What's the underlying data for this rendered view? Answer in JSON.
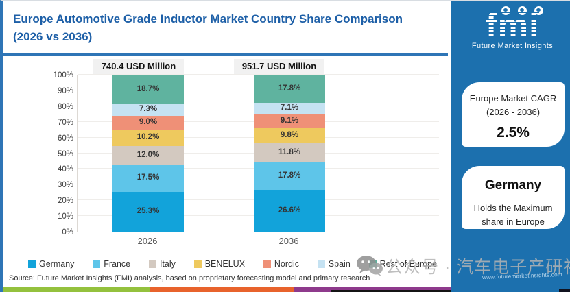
{
  "header": {
    "title": "Europe Automotive Grade Inductor Market Country Share Comparison (2026 vs 2036)"
  },
  "logo": {
    "name": "fmi",
    "tagline": "Future Market Insights",
    "website": "www.futuremarketinsights.com"
  },
  "sidebar": {
    "cagr_card": {
      "title_line1": "Europe Market CAGR",
      "title_line2": "(2026 - 2036)",
      "value": "2.5%"
    },
    "leader_card": {
      "country": "Germany",
      "desc_line1": "Holds the Maximum",
      "desc_line2": "share in Europe"
    }
  },
  "chart_data": {
    "type": "bar",
    "subtype": "100-percent-stacked-column",
    "title": "Europe Automotive Grade Inductor Market Country Share Comparison (2026 vs 2036)",
    "categories": [
      "2026",
      "2036"
    ],
    "bar_totals": [
      "740.4 USD Million",
      "951.7 USD Million"
    ],
    "series": [
      {
        "name": "Germany",
        "color": "#12a3da",
        "values": [
          25.3,
          26.6
        ]
      },
      {
        "name": "France",
        "color": "#5ec5e9",
        "values": [
          17.5,
          17.8
        ]
      },
      {
        "name": "Italy",
        "color": "#d3c9c0",
        "values": [
          12.0,
          11.8
        ]
      },
      {
        "name": "BENELUX",
        "color": "#eec95e",
        "values": [
          10.2,
          9.8
        ]
      },
      {
        "name": "Nordic",
        "color": "#ef9077",
        "values": [
          9.0,
          9.1
        ]
      },
      {
        "name": "Spain",
        "color": "#c5e2f2",
        "values": [
          7.3,
          7.1
        ]
      },
      {
        "name": "Rest of Europe",
        "color": "#5fb39f",
        "values": [
          18.7,
          17.8
        ]
      }
    ],
    "stack_order_bottom_to_top": [
      "Germany",
      "France",
      "Italy",
      "BENELUX",
      "Nordic",
      "Spain",
      "Rest of Europe"
    ],
    "y_ticks": [
      "0%",
      "10%",
      "20%",
      "30%",
      "40%",
      "50%",
      "60%",
      "70%",
      "80%",
      "90%",
      "100%"
    ],
    "ylim": [
      0,
      100
    ],
    "grid": true,
    "legend_position": "bottom"
  },
  "footer": {
    "source": "Source: Future Market Insights (FMI) analysis, based on proprietary forecasting model and primary research"
  },
  "watermark": {
    "text": "公众号 · 汽车电子产研社",
    "icon": "wechat-icon"
  },
  "colors": {
    "panel_blue": "#1c70ae",
    "title_blue": "#1d5fa7",
    "divider_blue": "#2e75b6",
    "value_box_bg": "#f1f1f1",
    "stripe_green": "#94c13d",
    "stripe_orange": "#e8632c",
    "stripe_purple": "#8e3a8c"
  }
}
